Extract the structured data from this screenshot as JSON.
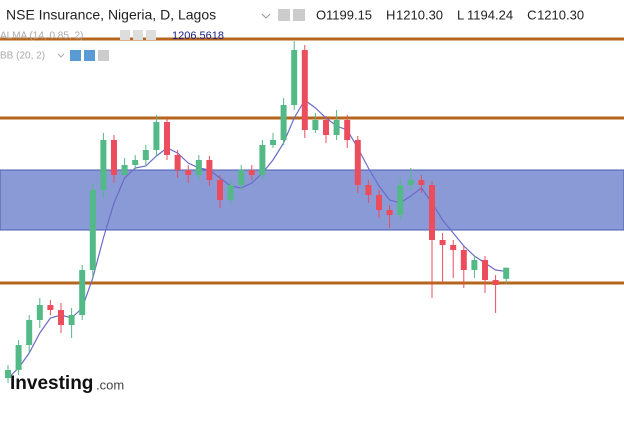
{
  "header": {
    "symbol": "NSE Insurance, Nigeria, D, Lagos",
    "ohlc": [
      {
        "key": "O",
        "label": "1199.15"
      },
      {
        "key": "H",
        "label": "1210.30"
      },
      {
        "key": "L",
        "label": "1194.24"
      },
      {
        "key": "C",
        "label": "1210.30"
      }
    ],
    "indicators": [
      {
        "name": "ALMA (14, 0.85, 2)",
        "value": "1206.5618"
      },
      {
        "name": "BB (20, 2)"
      }
    ]
  },
  "logo": {
    "brand": "Investing",
    "suffix": ".com"
  },
  "chart_data": {
    "type": "candlestick",
    "ylim": [
      1070,
      1478
    ],
    "up_color": "#53b987",
    "down_color": "#eb4d5c",
    "open": [
      1100,
      1108,
      1133,
      1158,
      1173,
      1168,
      1153,
      1163,
      1208,
      1288,
      1338,
      1303,
      1313,
      1318,
      1328,
      1356,
      1323,
      1308,
      1303,
      1318,
      1298,
      1278,
      1293,
      1308,
      1303,
      1333,
      1338,
      1373,
      1428,
      1348,
      1358,
      1343,
      1358,
      1338,
      1293,
      1283,
      1268,
      1263,
      1293,
      1298,
      1293,
      1238,
      1233,
      1228,
      1208,
      1218,
      1198,
      1199.15
    ],
    "high": [
      1113,
      1138,
      1163,
      1180,
      1178,
      1175,
      1170,
      1213,
      1295,
      1345,
      1343,
      1320,
      1323,
      1333,
      1363,
      1360,
      1328,
      1313,
      1323,
      1322,
      1303,
      1298,
      1313,
      1313,
      1338,
      1345,
      1380,
      1437,
      1433,
      1365,
      1362,
      1368,
      1363,
      1342,
      1298,
      1288,
      1273,
      1300,
      1310,
      1303,
      1297,
      1245,
      1238,
      1232,
      1223,
      1222,
      1203,
      1210.3
    ],
    "low": [
      1095,
      1103,
      1125,
      1150,
      1163,
      1145,
      1140,
      1158,
      1200,
      1280,
      1295,
      1305,
      1308,
      1313,
      1322,
      1318,
      1300,
      1295,
      1298,
      1292,
      1270,
      1273,
      1288,
      1298,
      1298,
      1330,
      1333,
      1368,
      1340,
      1345,
      1335,
      1338,
      1330,
      1285,
      1275,
      1260,
      1250,
      1258,
      1288,
      1285,
      1180,
      1195,
      1200,
      1190,
      1200,
      1185,
      1165,
      1194.24
    ],
    "close": [
      1108,
      1133,
      1158,
      1173,
      1168,
      1153,
      1163,
      1208,
      1288,
      1338,
      1303,
      1313,
      1318,
      1328,
      1356,
      1323,
      1308,
      1303,
      1318,
      1298,
      1278,
      1293,
      1308,
      1303,
      1333,
      1338,
      1373,
      1428,
      1348,
      1358,
      1343,
      1358,
      1338,
      1293,
      1283,
      1268,
      1263,
      1293,
      1298,
      1293,
      1238,
      1233,
      1228,
      1208,
      1218,
      1198,
      1193,
      1210.3
    ],
    "alma": {
      "color": "#6b6bc9",
      "values": [
        1100,
        1110,
        1125,
        1145,
        1160,
        1163,
        1160,
        1170,
        1200,
        1240,
        1275,
        1300,
        1310,
        1312,
        1322,
        1330,
        1325,
        1315,
        1310,
        1308,
        1300,
        1292,
        1290,
        1295,
        1305,
        1318,
        1335,
        1360,
        1378,
        1370,
        1360,
        1352,
        1348,
        1330,
        1310,
        1292,
        1278,
        1275,
        1282,
        1290,
        1275,
        1258,
        1245,
        1232,
        1222,
        1215,
        1208,
        1206.5618
      ]
    },
    "levels": {
      "color": "#b5651d",
      "values": [
        1439,
        1360,
        1195
      ]
    },
    "band": {
      "color": "#8a9ad6",
      "border": "#4a5bb0",
      "range": [
        1248,
        1308
      ]
    }
  }
}
